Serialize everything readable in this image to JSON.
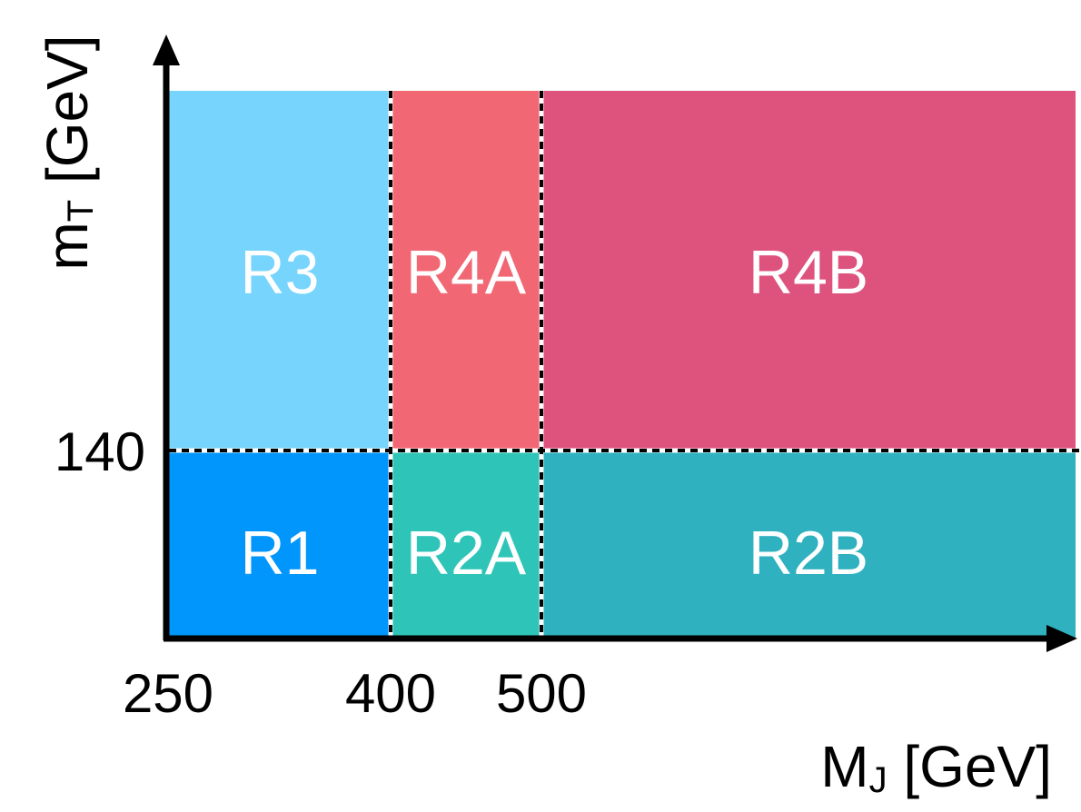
{
  "axes": {
    "x_title_main": "M",
    "x_title_sub": "J",
    "x_title_unit": " [GeV]",
    "y_title_main": "m",
    "y_title_sub": "T",
    "y_title_unit": " [GeV]",
    "x_ticks": [
      "250",
      "400",
      "500"
    ],
    "y_ticks": [
      "140"
    ]
  },
  "regions": [
    {
      "id": "r3",
      "label": "R3",
      "color": "#77d4fc"
    },
    {
      "id": "r4a",
      "label": "R4A",
      "color": "#f16774"
    },
    {
      "id": "r4b",
      "label": "R4B",
      "color": "#de527e"
    },
    {
      "id": "r1",
      "label": "R1",
      "color": "#0096fb"
    },
    {
      "id": "r2a",
      "label": "R2A",
      "color": "#2ec5b8"
    },
    {
      "id": "r2b",
      "label": "R2B",
      "color": "#2fb1bf"
    }
  ],
  "colors": {
    "axis": "#000000",
    "divider": "#000000",
    "text": "#ffffff"
  }
}
